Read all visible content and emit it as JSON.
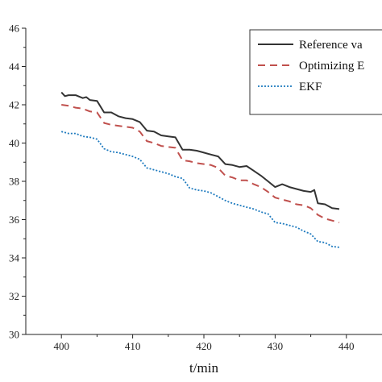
{
  "chart_data": {
    "type": "line",
    "title": "",
    "xlabel": "t/min",
    "ylabel": "",
    "xlim": [
      395,
      445
    ],
    "ylim": [
      30,
      46
    ],
    "xticks": [
      400,
      410,
      420,
      430,
      440
    ],
    "yticks": [
      30,
      32,
      34,
      36,
      38,
      40,
      42,
      44,
      46
    ],
    "legend_position": "top-right",
    "grid": false,
    "series": [
      {
        "name": "Reference va",
        "color": "#333333",
        "style": "solid",
        "x": [
          400,
          400.5,
          401,
          402,
          403,
          403.5,
          404,
          405,
          406,
          407,
          408,
          409,
          410,
          411,
          412,
          413,
          414,
          415,
          416,
          417,
          418,
          419,
          420,
          421,
          422,
          423,
          424,
          425,
          426,
          427,
          428,
          429,
          430,
          431,
          432,
          433,
          434,
          435,
          435.5,
          436,
          437,
          438,
          439
        ],
        "y": [
          42.65,
          42.45,
          42.5,
          42.5,
          42.35,
          42.4,
          42.25,
          42.2,
          41.6,
          41.6,
          41.4,
          41.3,
          41.25,
          41.1,
          40.65,
          40.6,
          40.4,
          40.35,
          40.3,
          39.65,
          39.65,
          39.6,
          39.5,
          39.4,
          39.3,
          38.9,
          38.85,
          38.75,
          38.8,
          38.55,
          38.3,
          38.0,
          37.7,
          37.85,
          37.7,
          37.6,
          37.5,
          37.45,
          37.55,
          36.85,
          36.8,
          36.6,
          36.55
        ]
      },
      {
        "name": "Optimizing E",
        "color": "#c0504d",
        "style": "dashed",
        "x": [
          400,
          401,
          402,
          403,
          404,
          405,
          406,
          407,
          408,
          409,
          410,
          411,
          412,
          413,
          414,
          415,
          416,
          417,
          418,
          419,
          420,
          421,
          422,
          423,
          424,
          425,
          426,
          427,
          428,
          429,
          430,
          431,
          432,
          433,
          434,
          435,
          436,
          437,
          438,
          439
        ],
        "y": [
          42.0,
          41.95,
          41.85,
          41.8,
          41.65,
          41.6,
          41.05,
          40.95,
          40.9,
          40.85,
          40.8,
          40.6,
          40.1,
          40.0,
          39.85,
          39.8,
          39.75,
          39.1,
          39.05,
          38.95,
          38.9,
          38.85,
          38.7,
          38.3,
          38.2,
          38.05,
          38.05,
          37.85,
          37.7,
          37.45,
          37.15,
          37.05,
          36.95,
          36.8,
          36.75,
          36.6,
          36.25,
          36.05,
          35.95,
          35.85
        ]
      },
      {
        "name": "EKF",
        "color": "#1f7bbf",
        "style": "dotted",
        "x": [
          400,
          401,
          402,
          403,
          404,
          405,
          406,
          407,
          408,
          409,
          410,
          411,
          412,
          413,
          414,
          415,
          416,
          417,
          418,
          419,
          420,
          421,
          422,
          423,
          424,
          425,
          426,
          427,
          428,
          429,
          430,
          431,
          432,
          433,
          434,
          435,
          436,
          437,
          438,
          439
        ],
        "y": [
          40.6,
          40.5,
          40.5,
          40.35,
          40.3,
          40.2,
          39.7,
          39.55,
          39.5,
          39.4,
          39.3,
          39.15,
          38.7,
          38.6,
          38.5,
          38.4,
          38.25,
          38.15,
          37.65,
          37.55,
          37.5,
          37.4,
          37.2,
          37.0,
          36.85,
          36.75,
          36.65,
          36.55,
          36.4,
          36.3,
          35.85,
          35.8,
          35.7,
          35.6,
          35.4,
          35.25,
          34.85,
          34.8,
          34.6,
          34.55
        ]
      }
    ]
  }
}
